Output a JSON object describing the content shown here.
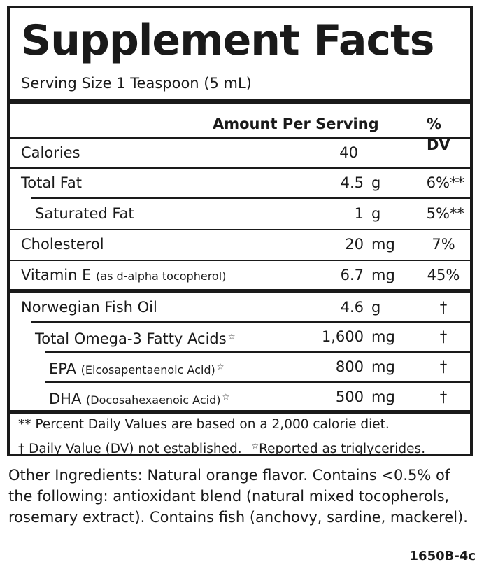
{
  "label": {
    "title": "Supplement Facts",
    "serving_size": "Serving Size 1 Teaspoon (5 mL)",
    "headers": {
      "amount": "Amount Per Serving",
      "dv": "% DV"
    },
    "rows": [
      {
        "name": "Calories",
        "sub": "",
        "amount": "40",
        "unit": "",
        "dv": ""
      },
      {
        "name": "Total Fat",
        "sub": "",
        "amount": "4.5",
        "unit": "g",
        "dv": "6%**"
      },
      {
        "name": "Saturated Fat",
        "sub": "",
        "amount": "1",
        "unit": "g",
        "dv": "5%**"
      },
      {
        "name": "Cholesterol",
        "sub": "",
        "amount": "20",
        "unit": "mg",
        "dv": "7%"
      },
      {
        "name": "Vitamin E ",
        "sub": "(as d-alpha tocopherol)",
        "amount": "6.7",
        "unit": "mg",
        "dv": "45%"
      },
      {
        "name": "Norwegian Fish Oil",
        "sub": "",
        "amount": "4.6",
        "unit": "g",
        "dv": "†"
      },
      {
        "name": "Total Omega-3 Fatty Acids",
        "sub": "",
        "star": "☆",
        "amount": "1,600",
        "unit": "mg",
        "dv": "†"
      },
      {
        "name": "EPA ",
        "sub": "(Eicosapentaenoic Acid)",
        "star": "☆",
        "amount": "800",
        "unit": "mg",
        "dv": "†"
      },
      {
        "name": "DHA ",
        "sub": "(Docosahexaenoic Acid)",
        "star": "☆",
        "amount": "500",
        "unit": "mg",
        "dv": "†"
      }
    ],
    "footnote_1": "** Percent Daily Values are based on a 2,000 calorie diet.",
    "footnote_2a": "† Daily Value (DV) not established.",
    "footnote_2_star": "☆",
    "footnote_2b": "Reported as triglycerides."
  },
  "other_ingredients": "Other Ingredients: Natural orange flavor. Contains <0.5% of the following: antioxidant blend (natural mixed tocopherols, rosemary extract). Contains fish (anchovy, sardine, mackerel).",
  "product_code": "1650B-4c"
}
